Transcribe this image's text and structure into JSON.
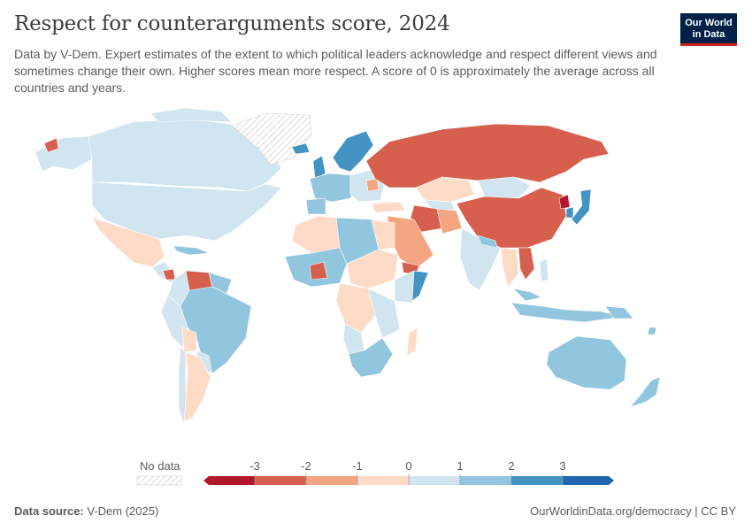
{
  "header": {
    "title": "Respect for counterarguments score, 2024",
    "subtitle": "Data by V-Dem. Expert estimates of the extent to which political leaders acknowledge and respect different views and sometimes change their own. Higher scores mean more respect. A score of 0 is approximately the average across all countries and years."
  },
  "logo": {
    "line1": "Our World",
    "line2": "in Data"
  },
  "legend": {
    "no_data_label": "No data",
    "ticks": [
      "-3",
      "-2",
      "-1",
      "0",
      "1",
      "2",
      "3"
    ],
    "colors": [
      "#b2182b",
      "#d6604d",
      "#f4a582",
      "#fddbc7",
      "#d1e5f0",
      "#92c5de",
      "#4393c3",
      "#2166ac"
    ]
  },
  "footer": {
    "source_label": "Data source:",
    "source_value": "V-Dem (2025)",
    "link": "OurWorldinData.org/democracy | CC BY"
  },
  "map_regions": [
    {
      "name": "north-america",
      "category": 1
    },
    {
      "name": "greenland",
      "category": "no-data"
    },
    {
      "name": "alaska",
      "category": 1
    },
    {
      "name": "mexico",
      "category": -1
    },
    {
      "name": "central-america",
      "category": 1
    },
    {
      "name": "nicaragua",
      "category": -2
    },
    {
      "name": "venezuela",
      "category": -2
    },
    {
      "name": "colombia",
      "category": 1
    },
    {
      "name": "brazil",
      "category": 2
    },
    {
      "name": "peru-bolivia",
      "category": 1
    },
    {
      "name": "argentina-chile",
      "category": -1
    },
    {
      "name": "russia",
      "category": -2
    },
    {
      "name": "china",
      "category": -2
    },
    {
      "name": "north-korea",
      "category": -3
    },
    {
      "name": "japan",
      "category": 3
    },
    {
      "name": "europe",
      "category": 2
    },
    {
      "name": "nordics",
      "category": 3
    },
    {
      "name": "kazakhstan",
      "category": -1
    },
    {
      "name": "mongolia",
      "category": 1
    },
    {
      "name": "iran",
      "category": -2
    },
    {
      "name": "saudi-arabia",
      "category": -1
    },
    {
      "name": "india",
      "category": 1
    },
    {
      "name": "southeast-asia",
      "category": 2
    },
    {
      "name": "australia",
      "category": 2
    },
    {
      "name": "new-zealand",
      "category": 2
    },
    {
      "name": "north-africa",
      "category": -1
    },
    {
      "name": "west-africa",
      "category": 2
    },
    {
      "name": "central-africa",
      "category": 1
    },
    {
      "name": "east-africa",
      "category": 1
    },
    {
      "name": "southern-africa",
      "category": 2
    },
    {
      "name": "madagascar",
      "category": -1
    }
  ]
}
